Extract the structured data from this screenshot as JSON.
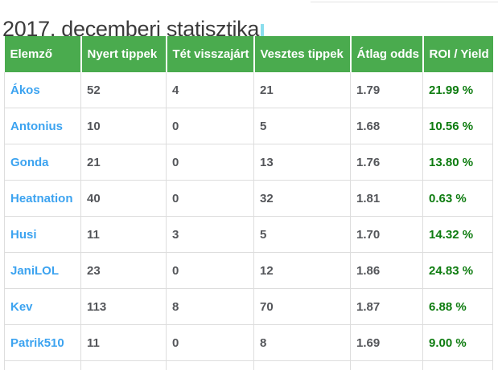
{
  "title": "2017. decemberi statisztika",
  "colors": {
    "header_bg": "#4aab4e",
    "header_text": "#ffffff",
    "analyst_link_blue": "#3ca3f0",
    "value_gray": "#54565a",
    "roi_green": "#0e7c10",
    "table_border": "#dddddd",
    "title_text": "#3b3b3b"
  },
  "table": {
    "columns": [
      "Elemző",
      "Nyert tippek",
      "Tét visszajárt",
      "Vesztes tippek",
      "Átlag odds",
      "ROI / Yield"
    ],
    "rows": [
      {
        "name": "Ákos",
        "won": "52",
        "returned": "4",
        "lost": "21",
        "avg_odds": "1.79",
        "roi": "21.99 %"
      },
      {
        "name": "Antonius",
        "won": "10",
        "returned": "0",
        "lost": "5",
        "avg_odds": "1.68",
        "roi": "10.56 %"
      },
      {
        "name": "Gonda",
        "won": "21",
        "returned": "0",
        "lost": "13",
        "avg_odds": "1.76",
        "roi": "13.80 %"
      },
      {
        "name": "Heatnation",
        "won": "40",
        "returned": "0",
        "lost": "32",
        "avg_odds": "1.81",
        "roi": "0.63 %"
      },
      {
        "name": "Husi",
        "won": "11",
        "returned": "3",
        "lost": "5",
        "avg_odds": "1.70",
        "roi": "14.32 %"
      },
      {
        "name": "JaniLOL",
        "won": "23",
        "returned": "0",
        "lost": "12",
        "avg_odds": "1.86",
        "roi": "24.83 %"
      },
      {
        "name": "Kev",
        "won": "113",
        "returned": "8",
        "lost": "70",
        "avg_odds": "1.87",
        "roi": "6.88 %"
      },
      {
        "name": "Patrik510",
        "won": "11",
        "returned": "0",
        "lost": "8",
        "avg_odds": "1.69",
        "roi": "9.00 %"
      }
    ]
  }
}
